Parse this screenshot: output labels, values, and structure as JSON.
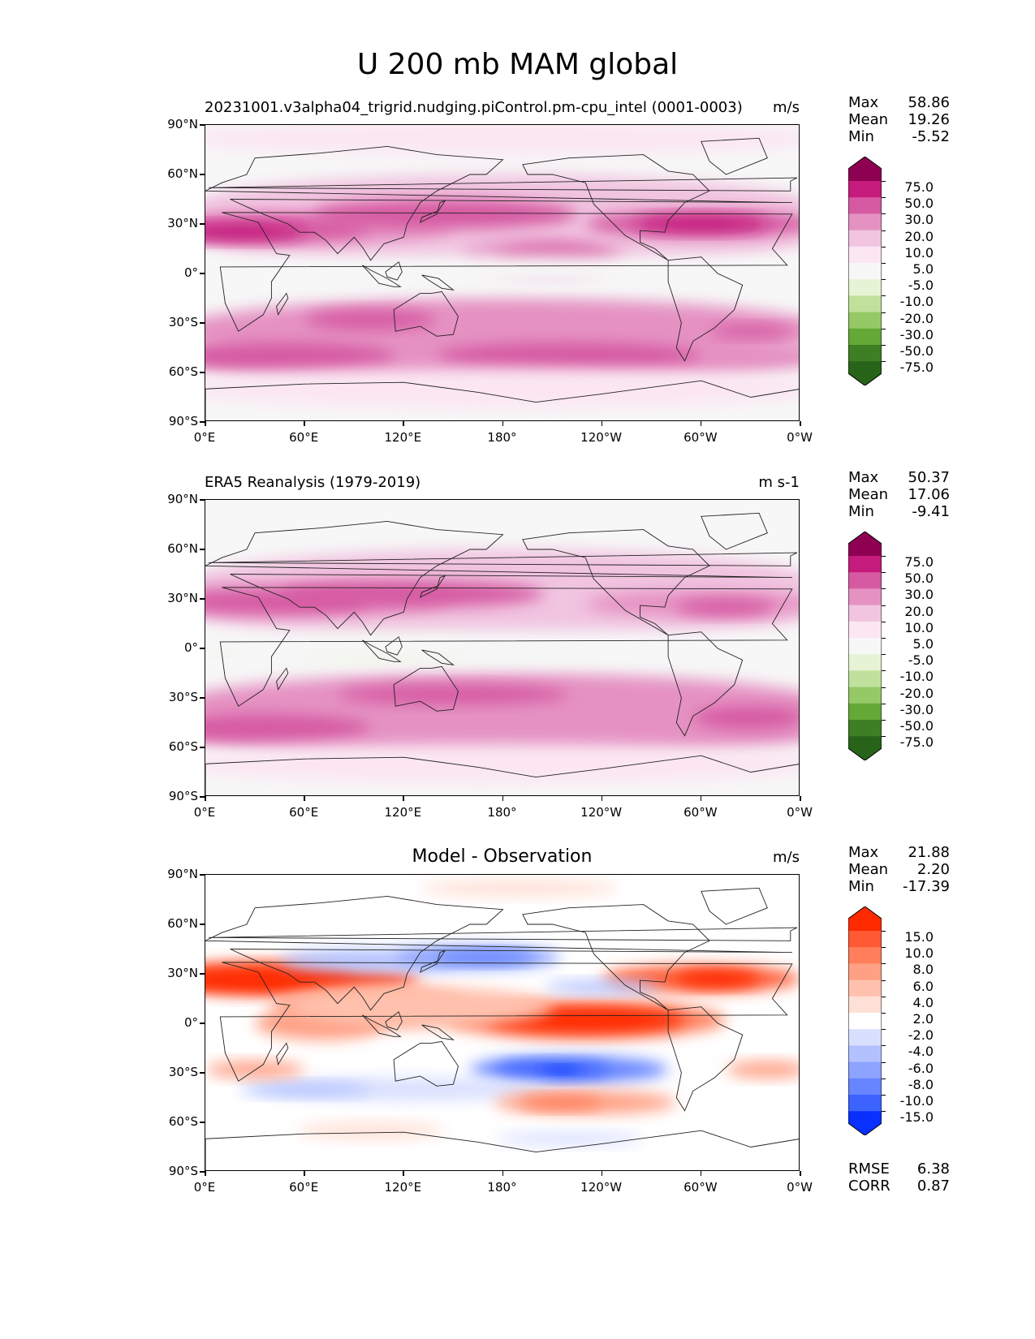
{
  "figure": {
    "title": "U 200 mb MAM global"
  },
  "chart_data": [
    {
      "type": "heatmap",
      "title": "20231001.v3alpha04_trigrid.nudging.piControl.pm-cpu_intel (0001-0003)",
      "units": "m/s",
      "stats": {
        "max": "58.86",
        "mean": "19.26",
        "min": "-5.52"
      },
      "colorbar": {
        "levels": [
          "75.0",
          "50.0",
          "30.0",
          "20.0",
          "10.0",
          "5.0",
          "-5.0",
          "-10.0",
          "-20.0",
          "-30.0",
          "-50.0",
          "-75.0"
        ],
        "colors": [
          "#8e0152",
          "#c51b7d",
          "#d65aa2",
          "#e592c3",
          "#f1c4e0",
          "#fbe6f2",
          "#f7f7f7",
          "#e6f3d4",
          "#c0e19b",
          "#95c966",
          "#64a838",
          "#3d7f22",
          "#276419"
        ]
      },
      "lat_ticks": [
        "90°N",
        "60°N",
        "30°N",
        "0°",
        "30°S",
        "60°S",
        "90°S"
      ],
      "lon_ticks": [
        "0°E",
        "60°E",
        "120°E",
        "180°",
        "120°W",
        "60°W",
        "0°W"
      ]
    },
    {
      "type": "heatmap",
      "title": "ERA5 Reanalysis (1979-2019)",
      "units": "m s-1",
      "stats": {
        "max": "50.37",
        "mean": "17.06",
        "min": "-9.41"
      },
      "colorbar": {
        "levels": [
          "75.0",
          "50.0",
          "30.0",
          "20.0",
          "10.0",
          "5.0",
          "-5.0",
          "-10.0",
          "-20.0",
          "-30.0",
          "-50.0",
          "-75.0"
        ],
        "colors": [
          "#8e0152",
          "#c51b7d",
          "#d65aa2",
          "#e592c3",
          "#f1c4e0",
          "#fbe6f2",
          "#f7f7f7",
          "#e6f3d4",
          "#c0e19b",
          "#95c966",
          "#64a838",
          "#3d7f22",
          "#276419"
        ]
      },
      "lat_ticks": [
        "90°N",
        "60°N",
        "30°N",
        "0°",
        "30°S",
        "60°S",
        "90°S"
      ],
      "lon_ticks": [
        "0°E",
        "60°E",
        "120°E",
        "180°",
        "120°W",
        "60°W",
        "0°W"
      ]
    },
    {
      "type": "heatmap",
      "title": "Model - Observation",
      "units": "m/s",
      "stats": {
        "max": "21.88",
        "mean": "2.20",
        "min": "-17.39"
      },
      "metrics": {
        "rmse_label": "RMSE",
        "rmse": "6.38",
        "corr_label": "CORR",
        "corr": "0.87"
      },
      "colorbar": {
        "levels": [
          "15.0",
          "10.0",
          "8.0",
          "6.0",
          "4.0",
          "2.0",
          "-2.0",
          "-4.0",
          "-6.0",
          "-8.0",
          "-10.0",
          "-15.0"
        ],
        "colors": [
          "#ff2a00",
          "#ff5a33",
          "#ff7f5c",
          "#ffa085",
          "#ffc1ad",
          "#ffe0d6",
          "#ffffff",
          "#d9e0ff",
          "#b3c2ff",
          "#8da3ff",
          "#6685ff",
          "#3d63ff",
          "#0a30ff"
        ]
      },
      "lat_ticks": [
        "90°N",
        "60°N",
        "30°N",
        "0°",
        "30°S",
        "60°S",
        "90°S"
      ],
      "lon_ticks": [
        "0°E",
        "60°E",
        "120°E",
        "180°",
        "120°W",
        "60°W",
        "0°W"
      ]
    }
  ],
  "stat_labels": {
    "max": "Max",
    "mean": "Mean",
    "min": "Min"
  }
}
